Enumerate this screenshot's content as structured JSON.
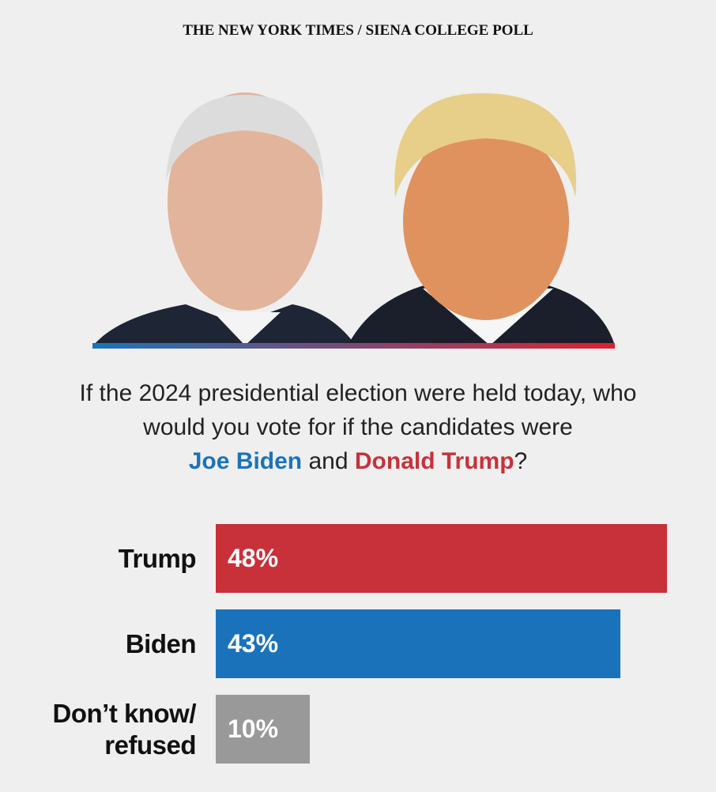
{
  "chart_data": {
    "type": "bar",
    "orientation": "horizontal",
    "header": "THE NEW YORK TIMES / SIENA COLLEGE POLL",
    "question": {
      "text": "If the 2024 presidential election were held today, who would you vote for if the candidates were",
      "name_a": "Joe Biden",
      "joiner": "and",
      "name_b": "Donald Trump",
      "end": "?"
    },
    "categories": [
      "Trump",
      "Biden",
      "Don’t know/ refused"
    ],
    "values": [
      48,
      43,
      10
    ],
    "value_labels": [
      "48%",
      "43%",
      "10%"
    ],
    "colors": [
      "#c8313a",
      "#1a73ba",
      "#999999"
    ]
  }
}
